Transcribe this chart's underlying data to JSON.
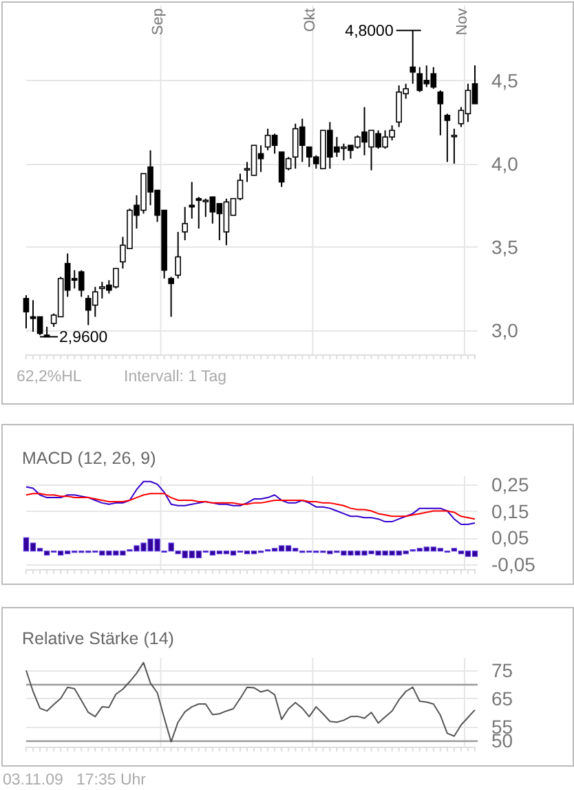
{
  "chart_data": [
    {
      "type": "candlestick",
      "categories": [
        null,
        null,
        null,
        null,
        null,
        null,
        null,
        null,
        null,
        null,
        null,
        null,
        null,
        null,
        null,
        null,
        null,
        null,
        null,
        "Sep",
        null,
        null,
        null,
        null,
        null,
        null,
        null,
        null,
        null,
        null,
        null,
        null,
        null,
        null,
        null,
        null,
        null,
        null,
        null,
        null,
        null,
        "Okt",
        null,
        null,
        null,
        null,
        null,
        null,
        null,
        null,
        null,
        null,
        null,
        null,
        null,
        null,
        null,
        null,
        null,
        null,
        null,
        null,
        null,
        "Nov",
        null,
        null
      ],
      "ohlc": [
        [
          3.19,
          3.21,
          3.01,
          3.11
        ],
        [
          3.08,
          3.18,
          2.99,
          3.07
        ],
        [
          3.08,
          3.08,
          2.97,
          2.98
        ],
        [
          2.97,
          3.02,
          2.96,
          2.96
        ],
        [
          3.04,
          3.1,
          3.02,
          3.09
        ],
        [
          3.08,
          3.32,
          3.08,
          3.31
        ],
        [
          3.4,
          3.46,
          3.2,
          3.24
        ],
        [
          3.31,
          3.36,
          3.25,
          3.3
        ],
        [
          3.35,
          3.36,
          3.2,
          3.24
        ],
        [
          3.19,
          3.21,
          3.03,
          3.12
        ],
        [
          3.15,
          3.26,
          3.08,
          3.23
        ],
        [
          3.25,
          3.29,
          3.19,
          3.26
        ],
        [
          3.27,
          3.3,
          3.22,
          3.24
        ],
        [
          3.26,
          3.37,
          3.25,
          3.37
        ],
        [
          3.41,
          3.56,
          3.37,
          3.51
        ],
        [
          3.49,
          3.73,
          3.49,
          3.72
        ],
        [
          3.75,
          3.81,
          3.61,
          3.69
        ],
        [
          3.72,
          3.94,
          3.7,
          3.94
        ],
        [
          3.98,
          4.08,
          3.75,
          3.83
        ],
        [
          3.84,
          3.84,
          3.65,
          3.69
        ],
        [
          3.72,
          3.72,
          3.31,
          3.36
        ],
        [
          3.31,
          3.32,
          3.08,
          3.28
        ],
        [
          3.33,
          3.59,
          3.31,
          3.44
        ],
        [
          3.59,
          3.74,
          3.54,
          3.64
        ],
        [
          3.75,
          3.89,
          3.67,
          3.74
        ],
        [
          3.79,
          3.8,
          3.61,
          3.78
        ],
        [
          3.78,
          3.79,
          3.68,
          3.78
        ],
        [
          3.8,
          3.8,
          3.64,
          3.71
        ],
        [
          3.76,
          3.76,
          3.54,
          3.7
        ],
        [
          3.59,
          3.79,
          3.51,
          3.77
        ],
        [
          3.69,
          3.79,
          3.69,
          3.79
        ],
        [
          3.79,
          3.94,
          3.78,
          3.9
        ],
        [
          3.97,
          4.01,
          3.89,
          3.97
        ],
        [
          3.93,
          4.11,
          3.93,
          4.11
        ],
        [
          4.06,
          4.11,
          3.95,
          4.03
        ],
        [
          4.1,
          4.21,
          4.08,
          4.17
        ],
        [
          4.17,
          4.18,
          4.06,
          4.11
        ],
        [
          4.07,
          4.07,
          3.86,
          3.89
        ],
        [
          3.97,
          4.04,
          3.96,
          4.03
        ],
        [
          4.04,
          4.24,
          3.97,
          4.21
        ],
        [
          4.22,
          4.27,
          4.01,
          4.11
        ],
        [
          4.1,
          4.1,
          3.98,
          4.04
        ],
        [
          4.04,
          4.05,
          3.97,
          4.0
        ],
        [
          3.97,
          4.2,
          3.97,
          4.2
        ],
        [
          4.2,
          4.25,
          3.97,
          4.04
        ],
        [
          4.1,
          4.16,
          4.04,
          4.07
        ],
        [
          4.1,
          4.12,
          4.02,
          4.1
        ],
        [
          4.11,
          4.11,
          4.03,
          4.08
        ],
        [
          4.1,
          4.17,
          4.09,
          4.16
        ],
        [
          4.19,
          4.34,
          4.05,
          4.13
        ],
        [
          4.1,
          4.2,
          3.96,
          4.2
        ],
        [
          4.18,
          4.2,
          4.09,
          4.1
        ],
        [
          4.1,
          4.2,
          4.09,
          4.16
        ],
        [
          4.16,
          4.23,
          4.14,
          4.2
        ],
        [
          4.25,
          4.47,
          4.22,
          4.43
        ],
        [
          4.42,
          4.48,
          4.39,
          4.45
        ],
        [
          4.58,
          4.8,
          4.48,
          4.55
        ],
        [
          4.54,
          4.58,
          4.43,
          4.44
        ],
        [
          4.5,
          4.59,
          4.46,
          4.48
        ],
        [
          4.54,
          4.58,
          4.45,
          4.46
        ],
        [
          4.43,
          4.44,
          4.17,
          4.36
        ],
        [
          4.29,
          4.3,
          4.01,
          4.26
        ],
        [
          4.17,
          4.21,
          4.0,
          4.17
        ],
        [
          4.24,
          4.34,
          4.22,
          4.32
        ],
        [
          4.3,
          4.48,
          4.25,
          4.44
        ],
        [
          4.48,
          4.59,
          4.36,
          4.36
        ]
      ],
      "color": "#000000",
      "ylim": [
        2.85,
        4.95
      ],
      "yticks": [
        {
          "value": 3,
          "label": "3,0"
        },
        {
          "value": 3.5,
          "label": "3,5"
        },
        {
          "value": 4,
          "label": "4,0"
        },
        {
          "value": 4.5,
          "label": "4,5"
        }
      ],
      "grid": true,
      "annotations": [
        "4,8000",
        "2,9600",
        "62,2%HL",
        "Intervall: 1 Tag"
      ]
    },
    {
      "type": "line",
      "title": "MACD (12, 26, 9)",
      "tick_labels": "y",
      "categories": [
        null,
        null,
        null,
        null,
        null,
        null,
        null,
        null,
        null,
        null,
        null,
        null,
        null,
        null,
        null,
        null,
        null,
        null,
        null,
        null,
        null,
        null,
        null,
        null,
        null,
        null,
        null,
        null,
        null,
        null,
        null,
        null,
        null,
        null,
        null,
        null,
        null,
        null,
        null,
        null,
        null,
        null,
        null,
        null,
        null,
        null,
        null,
        null,
        null,
        null,
        null,
        null,
        null,
        null,
        null,
        null,
        null,
        null,
        null,
        null,
        null,
        null,
        null,
        null,
        null,
        null
      ],
      "series": [
        {
          "type": "bar",
          "color": "#330099",
          "values": [
            0.05,
            0.03,
            0.01,
            -0.015,
            0,
            -0.015,
            -0.01,
            -0.005,
            -0.005,
            -0.005,
            0,
            -0.015,
            -0.015,
            -0.015,
            -0.015,
            0.005,
            0.02,
            0.03,
            0.045,
            0.045,
            0,
            0.03,
            -0.01,
            -0.025,
            -0.025,
            -0.025,
            0,
            -0.015,
            -0.01,
            -0.01,
            -0.015,
            0,
            -0.01,
            -0.01,
            -0.005,
            0.005,
            0.01,
            0.02,
            0.02,
            0.01,
            -0.005,
            0,
            -0.005,
            -0.005,
            -0.01,
            -0.005,
            -0.015,
            -0.015,
            -0.015,
            -0.015,
            -0.01,
            -0.015,
            -0.015,
            -0.015,
            -0.015,
            -0.01,
            0.005,
            0.01,
            0.015,
            0.015,
            0.01,
            0,
            0.01,
            -0.01,
            -0.02,
            -0.02
          ]
        },
        {
          "color": "#3300cc",
          "values": [
            0.24,
            0.235,
            0.21,
            0.2,
            0.2,
            0.2,
            0.21,
            0.21,
            0.205,
            0.2,
            0.19,
            0.18,
            0.175,
            0.18,
            0.18,
            0.19,
            0.23,
            0.26,
            0.26,
            0.25,
            0.22,
            0.175,
            0.17,
            0.17,
            0.175,
            0.18,
            0.185,
            0.18,
            0.175,
            0.175,
            0.17,
            0.17,
            0.18,
            0.195,
            0.195,
            0.2,
            0.21,
            0.19,
            0.18,
            0.18,
            0.19,
            0.18,
            0.165,
            0.165,
            0.16,
            0.15,
            0.14,
            0.13,
            0.13,
            0.125,
            0.125,
            0.12,
            0.11,
            0.11,
            0.12,
            0.13,
            0.14,
            0.16,
            0.16,
            0.16,
            0.16,
            0.15,
            0.12,
            0.1,
            0.1,
            0.105
          ]
        },
        {
          "color": "#ff0000",
          "values": [
            0.21,
            0.215,
            0.215,
            0.21,
            0.21,
            0.205,
            0.205,
            0.2,
            0.2,
            0.2,
            0.195,
            0.19,
            0.185,
            0.185,
            0.185,
            0.19,
            0.2,
            0.21,
            0.215,
            0.215,
            0.215,
            0.2,
            0.19,
            0.19,
            0.19,
            0.185,
            0.185,
            0.18,
            0.18,
            0.18,
            0.18,
            0.175,
            0.175,
            0.18,
            0.18,
            0.185,
            0.19,
            0.19,
            0.19,
            0.19,
            0.19,
            0.185,
            0.185,
            0.18,
            0.18,
            0.175,
            0.17,
            0.16,
            0.155,
            0.155,
            0.15,
            0.14,
            0.135,
            0.13,
            0.13,
            0.13,
            0.135,
            0.14,
            0.145,
            0.15,
            0.15,
            0.15,
            0.145,
            0.13,
            0.125,
            0.12
          ]
        }
      ],
      "ylim": [
        -0.07,
        0.28
      ],
      "yticks": [
        {
          "value": 0.25,
          "label": "0,25"
        },
        {
          "value": 0.15,
          "label": "0,15"
        },
        {
          "value": 0.05,
          "label": "0,05"
        },
        {
          "value": -0.05,
          "label": "-0,05"
        }
      ],
      "grid": true
    },
    {
      "type": "line",
      "title": "Relative Stärke (14)",
      "tick_labels": "y",
      "categories": [
        null,
        null,
        null,
        null,
        null,
        null,
        null,
        null,
        null,
        null,
        null,
        null,
        null,
        null,
        null,
        null,
        null,
        null,
        null,
        null,
        null,
        null,
        null,
        null,
        null,
        null,
        null,
        null,
        null,
        null,
        null,
        null,
        null,
        null,
        null,
        null,
        null,
        null,
        null,
        null,
        null,
        null,
        null,
        null,
        null,
        null,
        null,
        null,
        null,
        null,
        null,
        null,
        null,
        null,
        null,
        null,
        null,
        null,
        null,
        null,
        null,
        null,
        null,
        null,
        null,
        null
      ],
      "series": [
        {
          "color": "#555555",
          "values": [
            75,
            67.5,
            61.5,
            60.5,
            62.8,
            65,
            69,
            68.5,
            64.3,
            60,
            58.5,
            62,
            61.8,
            66.5,
            68.3,
            71,
            74,
            77.8,
            70.5,
            67,
            58,
            49.5,
            56.5,
            60.2,
            62,
            63,
            63,
            59.2,
            59.5,
            60.5,
            61.3,
            65,
            69,
            68.8,
            67.3,
            68,
            66.3,
            57.5,
            61.3,
            63.5,
            61.5,
            58.5,
            62,
            59.5,
            56.8,
            56.5,
            57.2,
            58.5,
            58.6,
            57.9,
            60,
            56.2,
            58.4,
            60.5,
            64.5,
            67.5,
            69,
            64,
            63.7,
            63,
            59,
            52.5,
            51.5,
            55.5,
            58.2,
            60.9
          ]
        }
      ],
      "ylim": [
        47.5,
        79.5
      ],
      "yticks": [
        50,
        55,
        65,
        75
      ],
      "grid": true,
      "ref_lines": [
        {
          "axis": "y",
          "value": 70,
          "color": "#999999"
        },
        {
          "axis": "y",
          "value": 50,
          "color": "#999999"
        }
      ],
      "annotations": [
        "03.11.09   17:35 Uhr"
      ]
    }
  ]
}
